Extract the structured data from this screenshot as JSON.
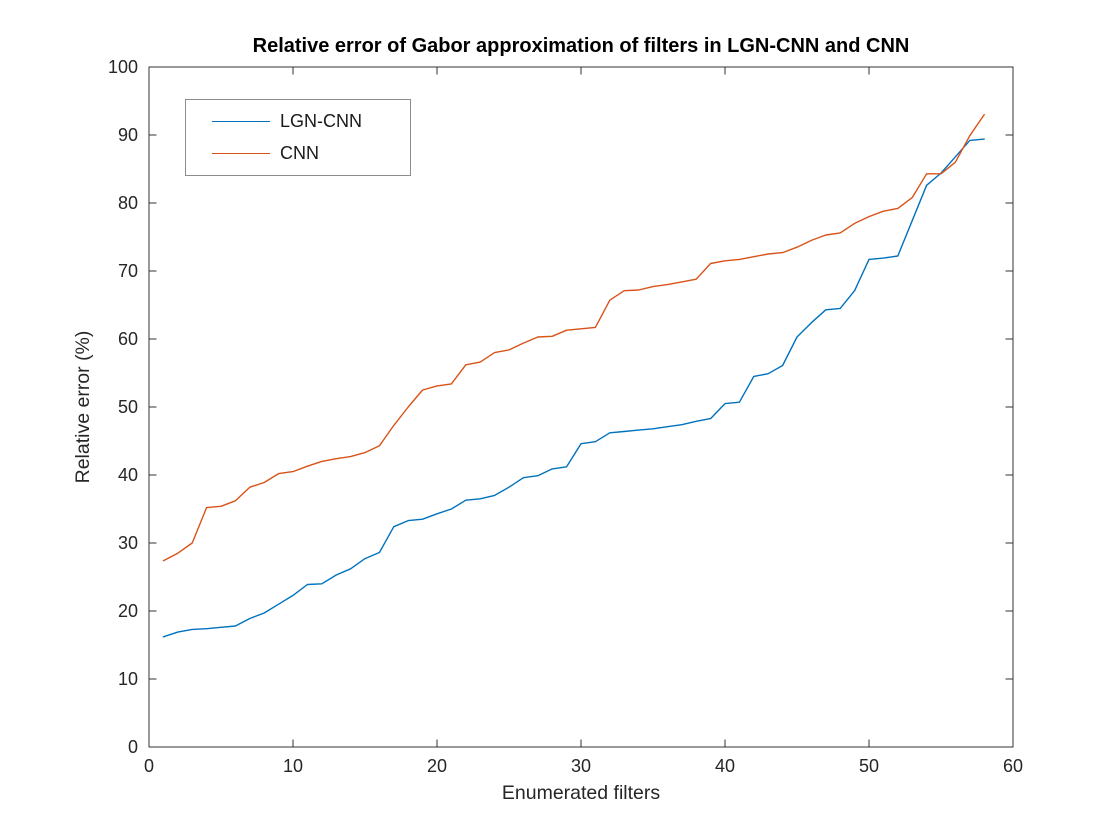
{
  "figure": {
    "background": "#ffffff",
    "axis_color": "#333333",
    "text_color": "#262626"
  },
  "chart_data": {
    "type": "line",
    "title": "Relative error of Gabor approximation of filters in LGN-CNN and CNN",
    "xlabel": "Enumerated filters",
    "ylabel": "Relative error (%)",
    "xlim": [
      0,
      60
    ],
    "ylim": [
      0,
      100
    ],
    "xticks": [
      0,
      10,
      20,
      30,
      40,
      50,
      60
    ],
    "yticks": [
      0,
      10,
      20,
      30,
      40,
      50,
      60,
      70,
      80,
      90,
      100
    ],
    "grid": false,
    "legend": {
      "position": "top-left",
      "border_color": "#8c8c8c"
    },
    "x": [
      1,
      2,
      3,
      4,
      5,
      6,
      7,
      8,
      9,
      10,
      11,
      12,
      13,
      14,
      15,
      16,
      17,
      18,
      19,
      20,
      21,
      22,
      23,
      24,
      25,
      26,
      27,
      28,
      29,
      30,
      31,
      32,
      33,
      34,
      35,
      36,
      37,
      38,
      39,
      40,
      41,
      42,
      43,
      44,
      45,
      46,
      47,
      48,
      49,
      50,
      51,
      52,
      53,
      54,
      55,
      56,
      57,
      58
    ],
    "series": [
      {
        "name": "LGN-CNN",
        "color": "#0072BD",
        "values": [
          16.2,
          16.9,
          17.3,
          17.4,
          17.6,
          17.8,
          18.9,
          19.7,
          21.0,
          22.3,
          23.9,
          24.0,
          25.3,
          26.2,
          27.7,
          28.6,
          32.4,
          33.3,
          33.5,
          34.3,
          35.0,
          36.3,
          36.5,
          37.0,
          38.2,
          39.6,
          39.9,
          40.9,
          41.2,
          44.6,
          44.9,
          46.2,
          46.4,
          46.6,
          46.8,
          47.1,
          47.4,
          47.9,
          48.3,
          50.5,
          50.7,
          54.5,
          54.9,
          56.1,
          60.3,
          62.4,
          64.3,
          64.5,
          67.1,
          71.7,
          71.9,
          72.2,
          77.4,
          82.6,
          84.4,
          86.8,
          89.2,
          89.4
        ]
      },
      {
        "name": "CNN",
        "color": "#D95319",
        "values": [
          27.4,
          28.5,
          30.0,
          35.2,
          35.4,
          36.2,
          38.2,
          38.9,
          40.2,
          40.5,
          41.3,
          42.0,
          42.4,
          42.7,
          43.3,
          44.3,
          47.3,
          50.0,
          52.5,
          53.1,
          53.4,
          56.2,
          56.6,
          58.0,
          58.4,
          59.4,
          60.3,
          60.4,
          61.3,
          61.5,
          61.7,
          65.7,
          67.1,
          67.2,
          67.7,
          68.0,
          68.4,
          68.8,
          71.1,
          71.5,
          71.7,
          72.1,
          72.5,
          72.7,
          73.5,
          74.5,
          75.3,
          75.6,
          77.0,
          78.0,
          78.8,
          79.2,
          80.8,
          84.3,
          84.3,
          86.0,
          89.9,
          93.0
        ]
      }
    ]
  }
}
